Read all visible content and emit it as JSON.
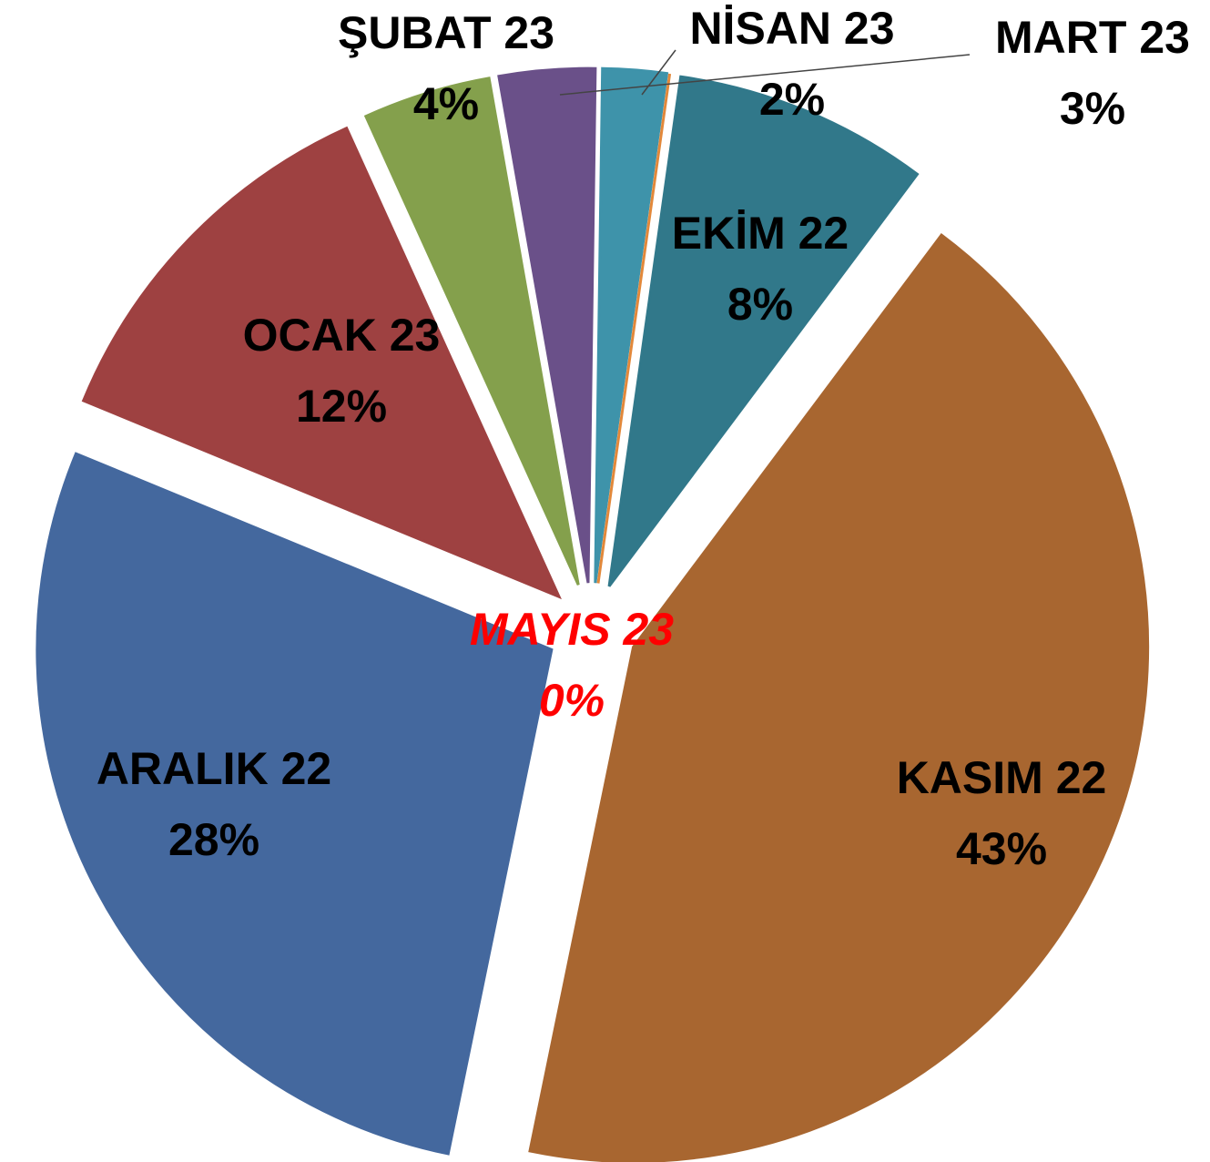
{
  "chart_data": {
    "type": "pie",
    "categories": [
      "EKİM 22",
      "KASIM 22",
      "ARALIK 22",
      "OCAK 23",
      "ŞUBAT 23",
      "MART 23",
      "NİSAN 23",
      "MAYIS 23"
    ],
    "values": [
      8,
      43,
      28,
      12,
      4,
      3,
      2,
      0
    ],
    "value_labels": [
      "8%",
      "43%",
      "28%",
      "12%",
      "4%",
      "3%",
      "2%",
      "0%"
    ],
    "colors": [
      "#31788a",
      "#a86630",
      "#44689e",
      "#9e4141",
      "#84a04c",
      "#6a5089",
      "#3e93aa",
      "#e2883a"
    ]
  }
}
